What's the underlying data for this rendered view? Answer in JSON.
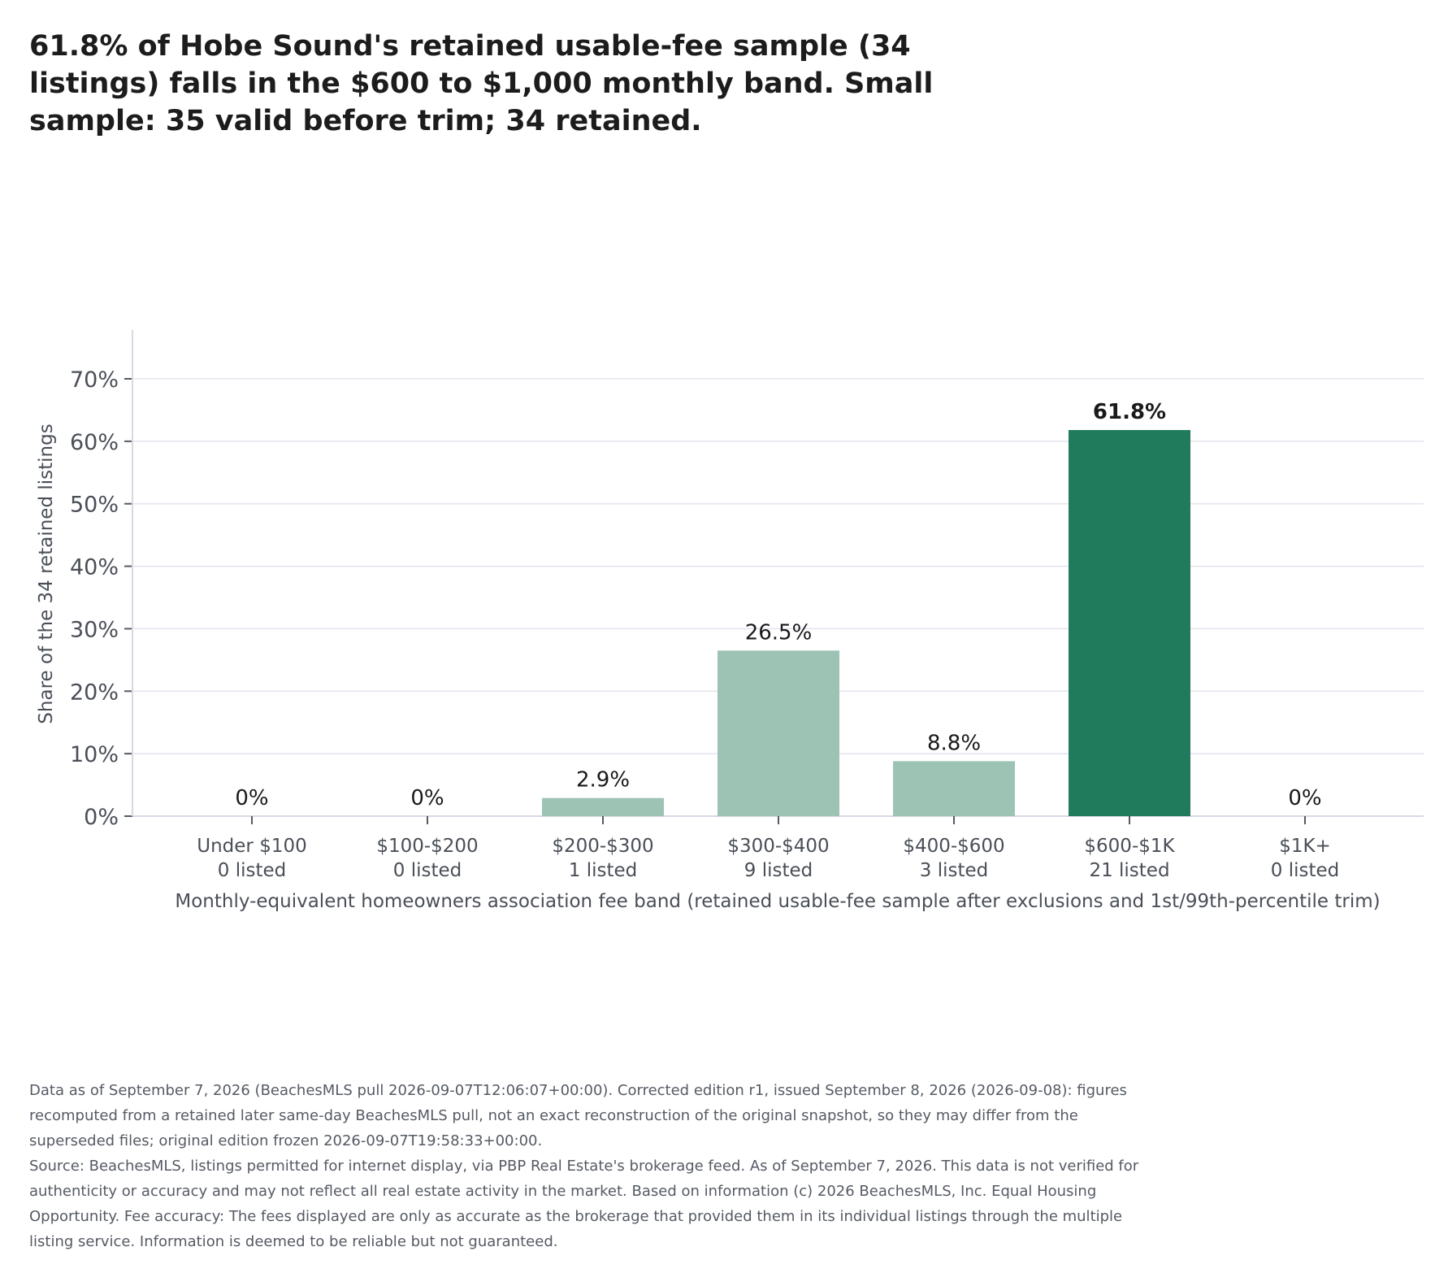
{
  "title": "61.8% of Hobe Sound's retained usable-fee sample (34 listings) falls in the $600 to $1,000 monthly band. Small sample: 35 valid before trim; 34 retained.",
  "colors": {
    "bar": "#9cc3b3",
    "highlight": "#207b5c",
    "grid": "#e3e4ee",
    "axis": "#d8d9e3"
  },
  "chart_data": {
    "type": "bar",
    "categories": [
      "Under $100",
      "$100-$200",
      "$200-$300",
      "$300-$400",
      "$400-$600",
      "$600-$1K",
      "$1K+"
    ],
    "counts": [
      "0 listed",
      "0 listed",
      "1 listed",
      "9 listed",
      "3 listed",
      "21 listed",
      "0 listed"
    ],
    "values": [
      0,
      0,
      2.9,
      26.5,
      8.8,
      61.8,
      0
    ],
    "value_labels": [
      "0%",
      "0%",
      "2.9%",
      "26.5%",
      "8.8%",
      "61.8%",
      "0%"
    ],
    "highlight_index": 5,
    "xlabel": "Monthly-equivalent homeowners association fee band (retained usable-fee sample after exclusions and 1st/99th-percentile trim)",
    "ylabel": "Share of the 34 retained listings",
    "yticks": [
      "0%",
      "10%",
      "20%",
      "30%",
      "40%",
      "50%",
      "60%",
      "70%"
    ],
    "ytick_values": [
      0,
      10,
      20,
      30,
      40,
      50,
      60,
      70
    ],
    "ylim": [
      0,
      70
    ],
    "grid": true,
    "legend": "none"
  },
  "footnote": {
    "paragraph1": "Data as of September 7, 2026 (BeachesMLS pull 2026-09-07T12:06:07+00:00). Corrected edition r1, issued September 8, 2026 (2026-09-08): figures recomputed from a retained later same-day BeachesMLS pull, not an exact reconstruction of the original snapshot, so they may differ from the superseded files; original edition frozen 2026-09-07T19:58:33+00:00.",
    "paragraph2": "Source: BeachesMLS, listings permitted for internet display, via PBP Real Estate's brokerage feed. As of September 7, 2026. This data is not verified for authenticity or accuracy and may not reflect all real estate activity in the market. Based on information (c) 2026 BeachesMLS, Inc. Equal Housing Opportunity. Fee accuracy: The fees displayed are only as accurate as the brokerage that provided them in its individual listings through the multiple listing service. Information is deemed to be reliable but not guaranteed."
  }
}
